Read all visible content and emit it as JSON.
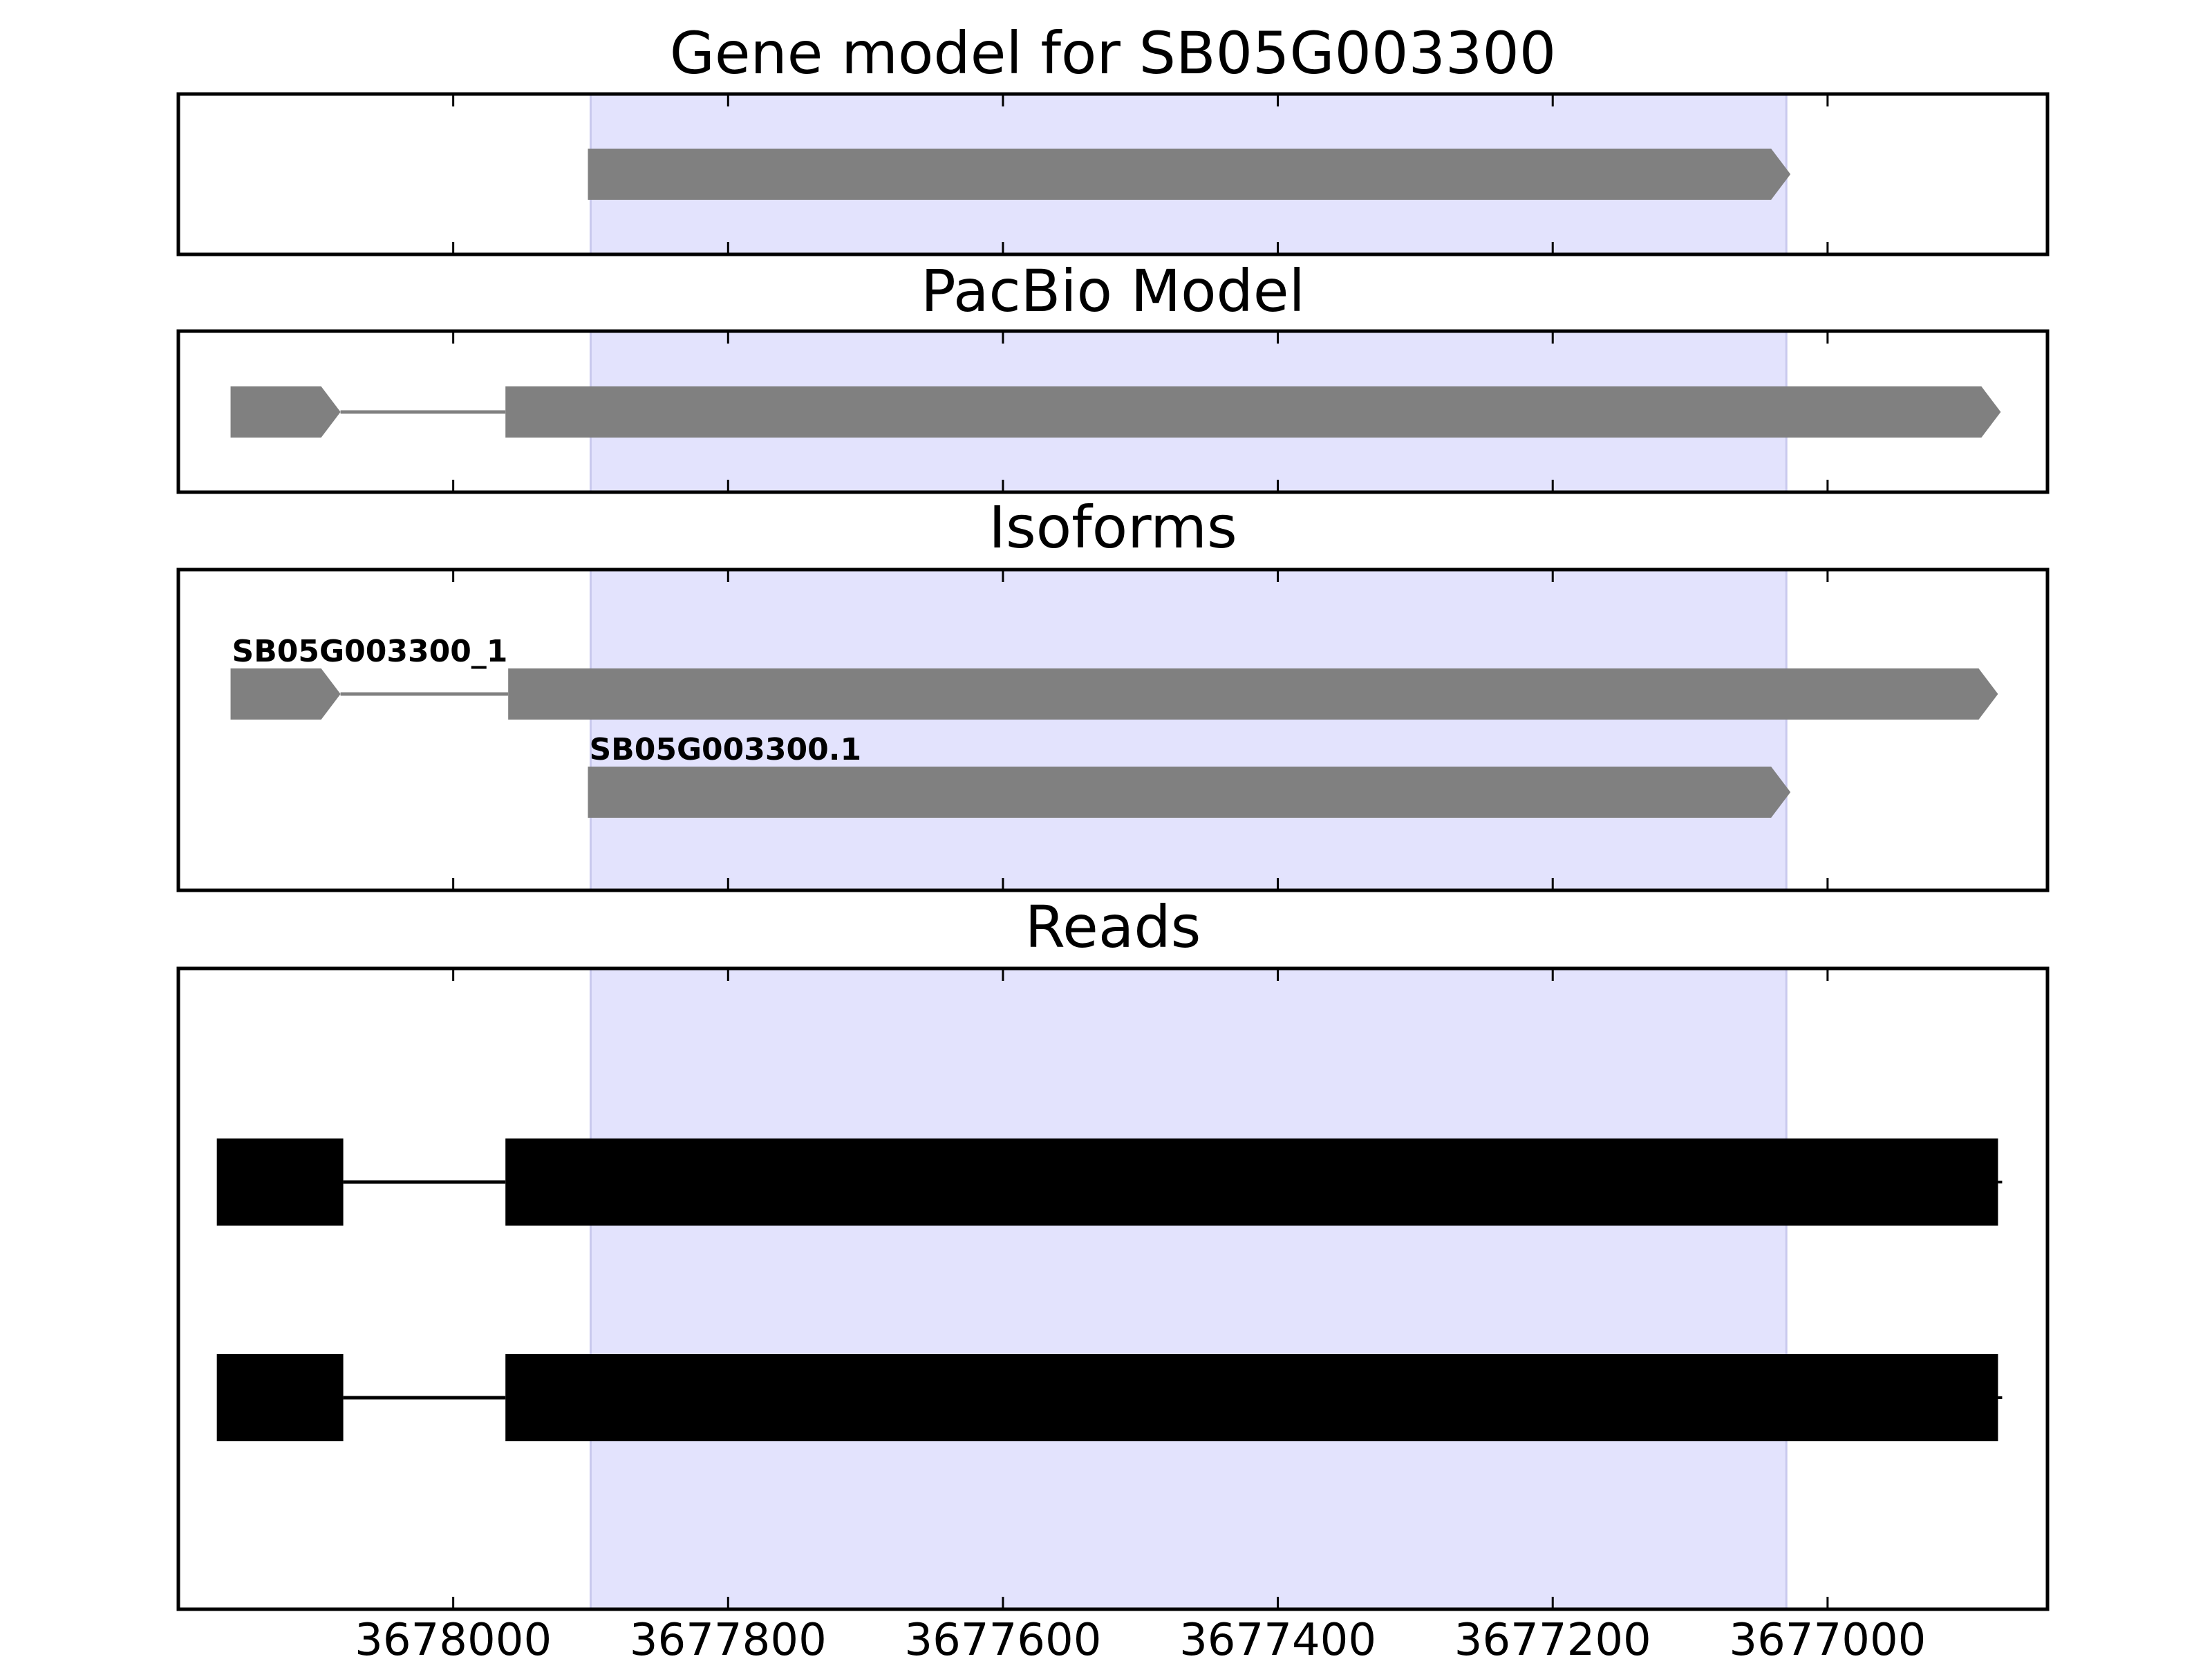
{
  "chart_data": {
    "type": "gene_model",
    "x_axis": {
      "inverted": true,
      "range": [
        3678200,
        3676840
      ],
      "ticks": [
        3678000,
        3677800,
        3677600,
        3677400,
        3677200,
        3677000
      ],
      "tick_labels": [
        "3678000",
        "3677800",
        "3677600",
        "3677400",
        "3677200",
        "3677000"
      ]
    },
    "highlight_region": [
      3677900,
      3677030
    ],
    "colors": {
      "highlight": "#e3e3fd",
      "feature": "#808080",
      "read": "#000000"
    },
    "panels": [
      {
        "title": "Gene model for SB05G003300",
        "features": [
          {
            "label": "",
            "exons": [
              [
                3677902,
                3677027
              ]
            ],
            "arrow": true
          }
        ]
      },
      {
        "title": "PacBio Model",
        "features": [
          {
            "label": "",
            "exons": [
              [
                3678162,
                3678082
              ],
              [
                3677962,
                3676874
              ]
            ],
            "arrow": true
          }
        ]
      },
      {
        "title": "Isoforms",
        "features": [
          {
            "label": "SB05G003300_1",
            "exons": [
              [
                3678162,
                3678082
              ],
              [
                3677960,
                3676876
              ]
            ],
            "arrow": true
          },
          {
            "label": "SB05G003300.1",
            "exons": [
              [
                3677902,
                3677027
              ]
            ],
            "arrow": true
          }
        ]
      },
      {
        "title": "Reads",
        "features": [
          {
            "label": "",
            "exons": [
              [
                3678172,
                3678080
              ],
              [
                3677962,
                3676876
              ]
            ],
            "arrow": false
          },
          {
            "label": "",
            "exons": [
              [
                3678172,
                3678080
              ],
              [
                3677962,
                3676876
              ]
            ],
            "arrow": false
          }
        ]
      }
    ]
  }
}
